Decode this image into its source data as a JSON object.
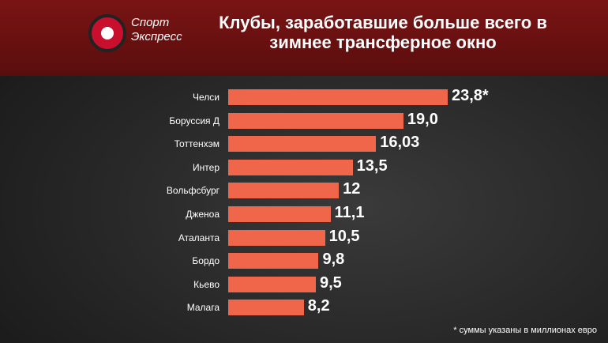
{
  "logo": [
    "Спорт",
    "Экспресс"
  ],
  "chart_data": {
    "type": "bar",
    "orientation": "horizontal",
    "title": "Клубы, заработавшие больше всего в зимнее трансферное окно",
    "categories": [
      "Челси",
      "Боруссия Д",
      "Тоттенхэм",
      "Интер",
      "Вольфсбург",
      "Дженоа",
      "Аталанта",
      "Бордо",
      "Кьево",
      "Малага"
    ],
    "values": [
      23.8,
      19.0,
      16.03,
      13.5,
      12,
      11.1,
      10.5,
      9.8,
      9.5,
      8.2
    ],
    "value_labels": [
      "23,8*",
      "19,0",
      "16,03",
      "13,5",
      "12",
      "11,1",
      "10,5",
      "9,8",
      "9,5",
      "8,2"
    ],
    "color": "#f0664b",
    "note": "* суммы указаны в миллионах евро"
  }
}
